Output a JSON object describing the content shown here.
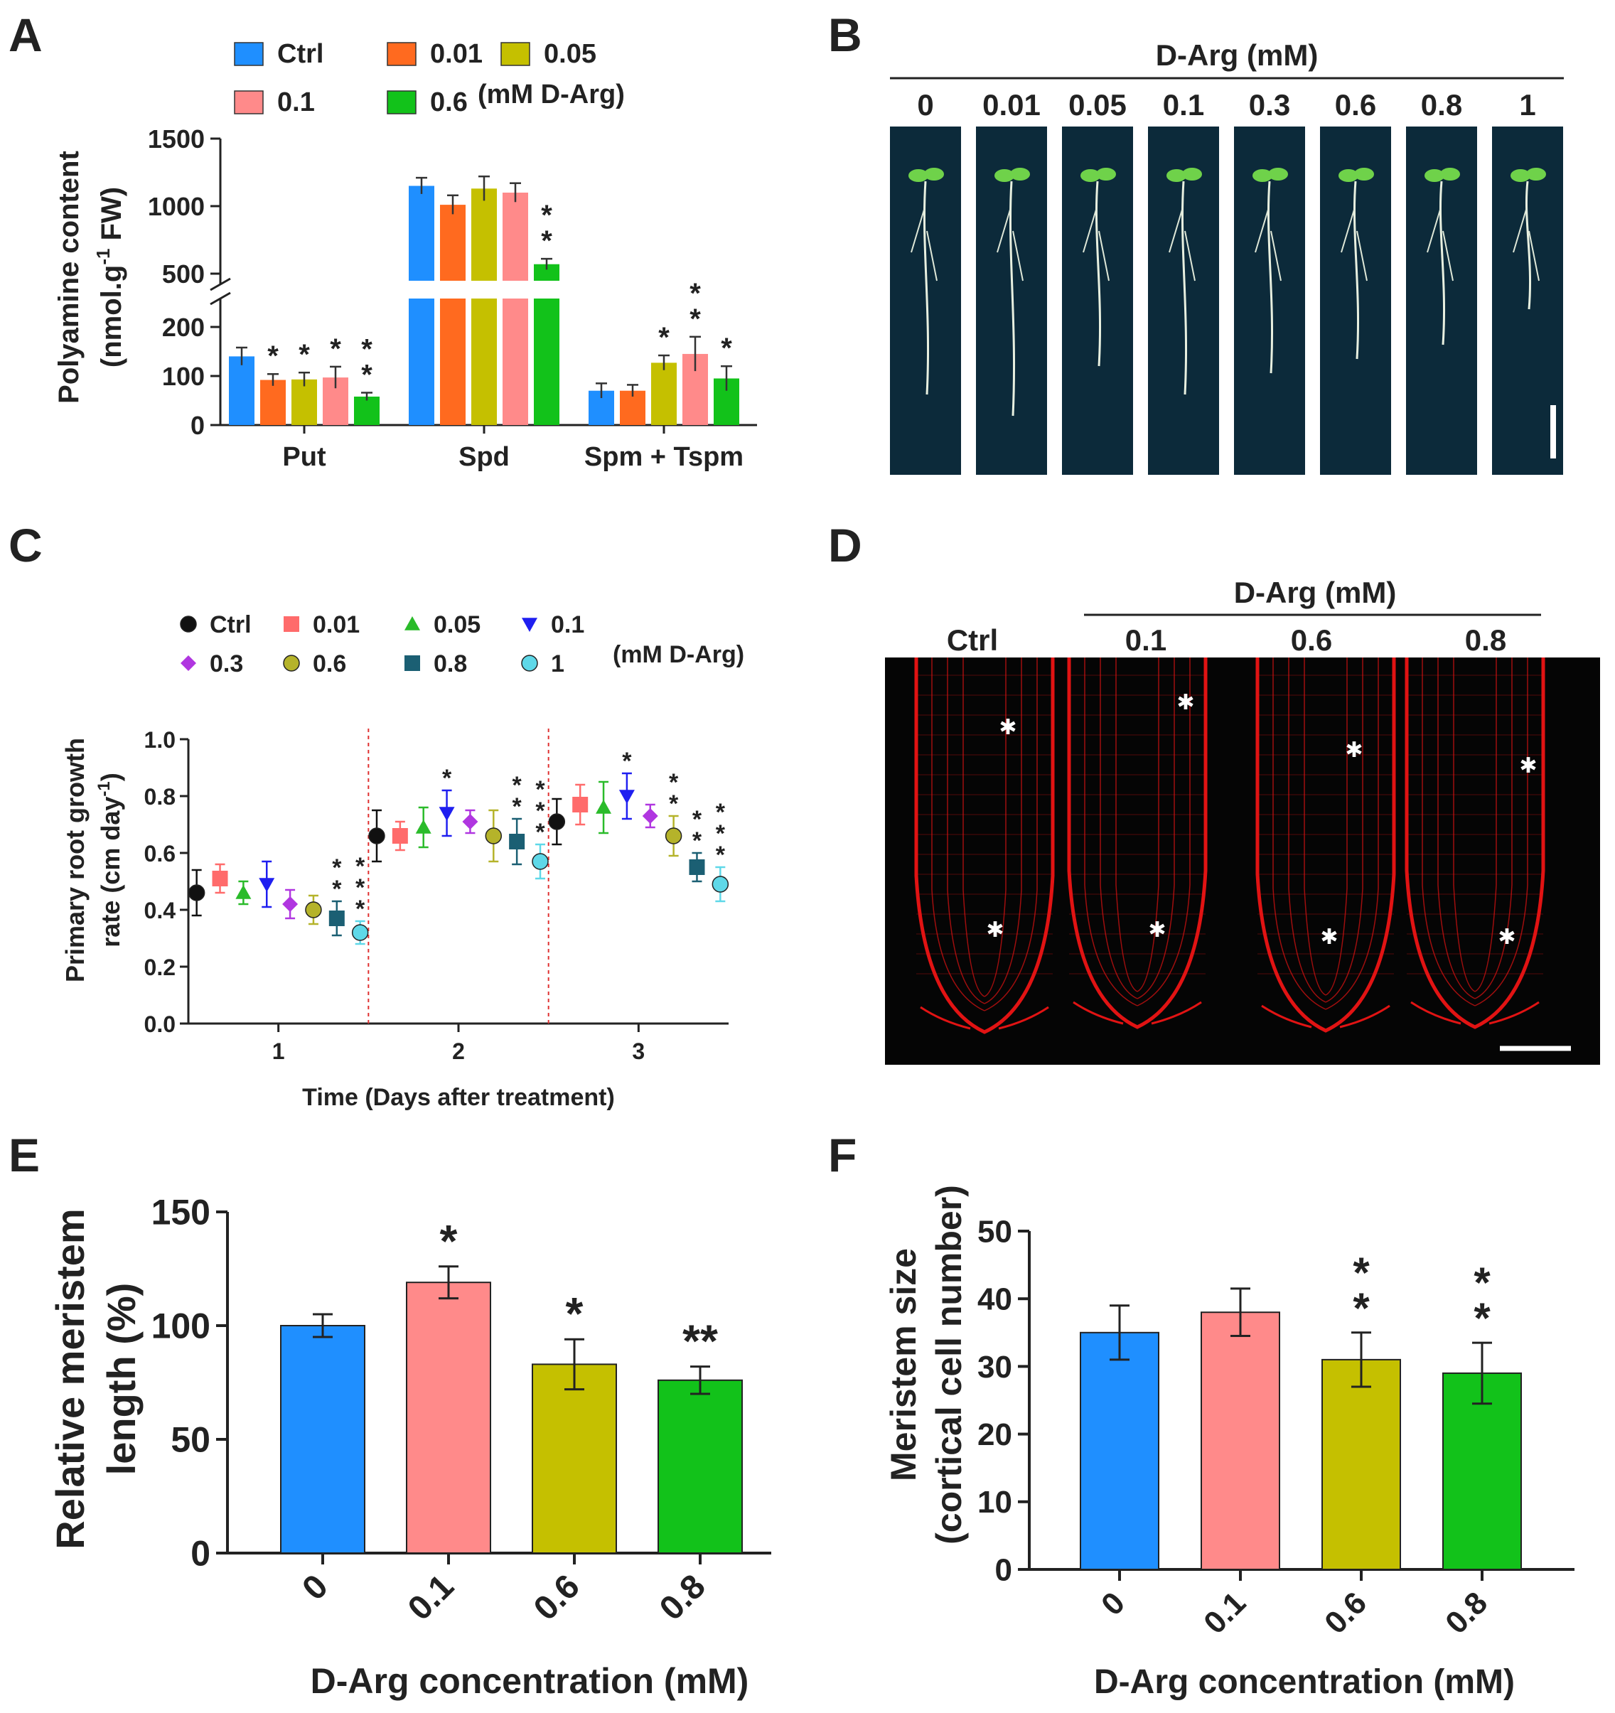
{
  "colors": {
    "ctrl": "#1f8fff",
    "c001": "#ff6a1f",
    "c005": "#c5c000",
    "c01": "#ff8a8a",
    "c06": "#12c21a",
    "c03": "#b036e0",
    "c06c": "#b5b32a",
    "c08": "#1b5f73",
    "c1": "#5fd8e8",
    "c01c": "#1f1ff0",
    "c001c": "#ff6b6b",
    "c005c": "#2abb2a",
    "black": "#111111",
    "dashed": "#e03030",
    "stain": "#e11313",
    "photo_bg": "#0c2a3a"
  },
  "panel_labels": [
    "A",
    "B",
    "C",
    "D",
    "E",
    "F"
  ],
  "panelA": {
    "legend": [
      {
        "label": "Ctrl",
        "color": "#1f8fff"
      },
      {
        "label": "0.01",
        "color": "#ff6a1f"
      },
      {
        "label": "0.05",
        "color": "#c5c000"
      },
      {
        "label": "0.1",
        "color": "#ff8a8a"
      },
      {
        "label": "0.6",
        "color": "#12c21a"
      }
    ],
    "legend_unit": "(mM D-Arg)",
    "ylabel_line1": "Polyamine content",
    "ylabel_line2_a": "(nmol.g",
    "ylabel_sup": "-1",
    "ylabel_line2_b": " FW)",
    "yticks_upper": [
      "500",
      "1000",
      "1500"
    ],
    "yticks_lower": [
      "0",
      "100",
      "200"
    ]
  },
  "panelB": {
    "header": "D-Arg (mM)",
    "concentrations": [
      "0",
      "0.01",
      "0.05",
      "0.1",
      "0.3",
      "0.6",
      "0.8",
      "1"
    ]
  },
  "panelC": {
    "legend": [
      {
        "label": "Ctrl",
        "color": "#111111",
        "shape": "circle"
      },
      {
        "label": "0.01",
        "color": "#ff6b6b",
        "shape": "square"
      },
      {
        "label": "0.05",
        "color": "#2abb2a",
        "shape": "triangle"
      },
      {
        "label": "0.1",
        "color": "#1f1ff0",
        "shape": "triangle-down"
      },
      {
        "label": "0.3",
        "color": "#b036e0",
        "shape": "diamond"
      },
      {
        "label": "0.6",
        "color": "#b5b32a",
        "shape": "circle"
      },
      {
        "label": "0.8",
        "color": "#1b5f73",
        "shape": "square"
      },
      {
        "label": "1",
        "color": "#5fd8e8",
        "shape": "circle"
      }
    ],
    "legend_unit": "(mM D-Arg)",
    "ylabel_line1": "Primary root growth",
    "ylabel_line2_a": "rate (cm day",
    "ylabel_sup": "-1",
    "ylabel_line2_b": ")",
    "xlabel": "Time (Days after treatment)"
  },
  "panelD": {
    "header": "D-Arg (mM)",
    "columns": [
      "Ctrl",
      "0.1",
      "0.6",
      "0.8"
    ]
  },
  "chart_data": [
    {
      "id": "A",
      "type": "bar",
      "categories": [
        "Put",
        "Spd",
        "Spm + Tspm"
      ],
      "series": [
        {
          "name": "Ctrl",
          "values": [
            140,
            1150,
            70
          ],
          "errors": [
            18,
            60,
            15
          ]
        },
        {
          "name": "0.01",
          "values": [
            92,
            1010,
            70
          ],
          "errors": [
            12,
            70,
            12
          ]
        },
        {
          "name": "0.05",
          "values": [
            93,
            1130,
            127
          ],
          "errors": [
            14,
            90,
            15
          ]
        },
        {
          "name": "0.1",
          "values": [
            97,
            1100,
            145
          ],
          "errors": [
            22,
            70,
            35
          ]
        },
        {
          "name": "0.6",
          "values": [
            58,
            570,
            95
          ],
          "errors": [
            8,
            40,
            25
          ]
        }
      ],
      "significance": [
        [
          "",
          "",
          ""
        ],
        [
          "*",
          "",
          ""
        ],
        [
          "*",
          "",
          "*"
        ],
        [
          "*",
          "",
          "**"
        ],
        [
          "**",
          "**",
          "*"
        ]
      ],
      "ylim_lower": [
        0,
        200
      ],
      "ylim_upper": [
        500,
        1500
      ],
      "y_break": true
    },
    {
      "id": "C",
      "type": "scatter",
      "x_ticks": [
        "1",
        "2",
        "3"
      ],
      "yticks": [
        "0.0",
        "0.2",
        "0.4",
        "0.6",
        "0.8",
        "1.0"
      ],
      "ylim": [
        0,
        1
      ],
      "series": [
        {
          "name": "Ctrl",
          "values": [
            0.46,
            0.66,
            0.71
          ],
          "errors": [
            0.08,
            0.09,
            0.08
          ]
        },
        {
          "name": "0.01",
          "values": [
            0.51,
            0.66,
            0.77
          ],
          "errors": [
            0.05,
            0.05,
            0.07
          ]
        },
        {
          "name": "0.05",
          "values": [
            0.46,
            0.69,
            0.76
          ],
          "errors": [
            0.04,
            0.07,
            0.09
          ]
        },
        {
          "name": "0.1",
          "values": [
            0.49,
            0.74,
            0.8
          ],
          "errors": [
            0.08,
            0.08,
            0.08
          ]
        },
        {
          "name": "0.3",
          "values": [
            0.42,
            0.71,
            0.73
          ],
          "errors": [
            0.05,
            0.04,
            0.04
          ]
        },
        {
          "name": "0.6",
          "values": [
            0.4,
            0.66,
            0.66
          ],
          "errors": [
            0.05,
            0.09,
            0.07
          ]
        },
        {
          "name": "0.8",
          "values": [
            0.37,
            0.64,
            0.55
          ],
          "errors": [
            0.06,
            0.08,
            0.05
          ]
        },
        {
          "name": "1",
          "values": [
            0.32,
            0.57,
            0.49
          ],
          "errors": [
            0.04,
            0.06,
            0.06
          ]
        }
      ],
      "significance": [
        [
          "",
          "",
          ""
        ],
        [
          "",
          "",
          ""
        ],
        [
          "",
          "",
          ""
        ],
        [
          "",
          "*",
          "*"
        ],
        [
          "",
          "",
          ""
        ],
        [
          "",
          "",
          "**"
        ],
        [
          "**",
          "**",
          "**"
        ],
        [
          "***",
          "***",
          "***"
        ]
      ],
      "dividers_at": [
        1.5,
        2.5
      ]
    },
    {
      "id": "E",
      "type": "bar",
      "ylabel_line1": "Relative meristem",
      "ylabel_line2": "length (%)",
      "xlabel": "D-Arg concentration (mM)",
      "categories": [
        "0",
        "0.1",
        "0.6",
        "0.8"
      ],
      "values": [
        100,
        119,
        83,
        76
      ],
      "errors": [
        5,
        7,
        11,
        6
      ],
      "significance": [
        "",
        "*",
        "*",
        "**"
      ],
      "ylim": [
        0,
        150
      ],
      "yticks": [
        "0",
        "50",
        "100",
        "150"
      ],
      "colors": [
        "#1f8fff",
        "#ff8a8a",
        "#c5c000",
        "#12c21a"
      ]
    },
    {
      "id": "F",
      "type": "bar",
      "ylabel_line1": "Meristem size",
      "ylabel_line2": "(cortical cell number)",
      "xlabel": "D-Arg concentration (mM)",
      "categories": [
        "0",
        "0.1",
        "0.6",
        "0.8"
      ],
      "values": [
        35,
        38,
        31,
        29
      ],
      "errors": [
        4,
        3.5,
        4,
        4.5
      ],
      "significance": [
        "",
        "",
        "**",
        "**"
      ],
      "ylim": [
        0,
        50
      ],
      "yticks": [
        "0",
        "10",
        "20",
        "30",
        "40",
        "50"
      ],
      "colors": [
        "#1f8fff",
        "#ff8a8a",
        "#c5c000",
        "#12c21a"
      ]
    }
  ]
}
